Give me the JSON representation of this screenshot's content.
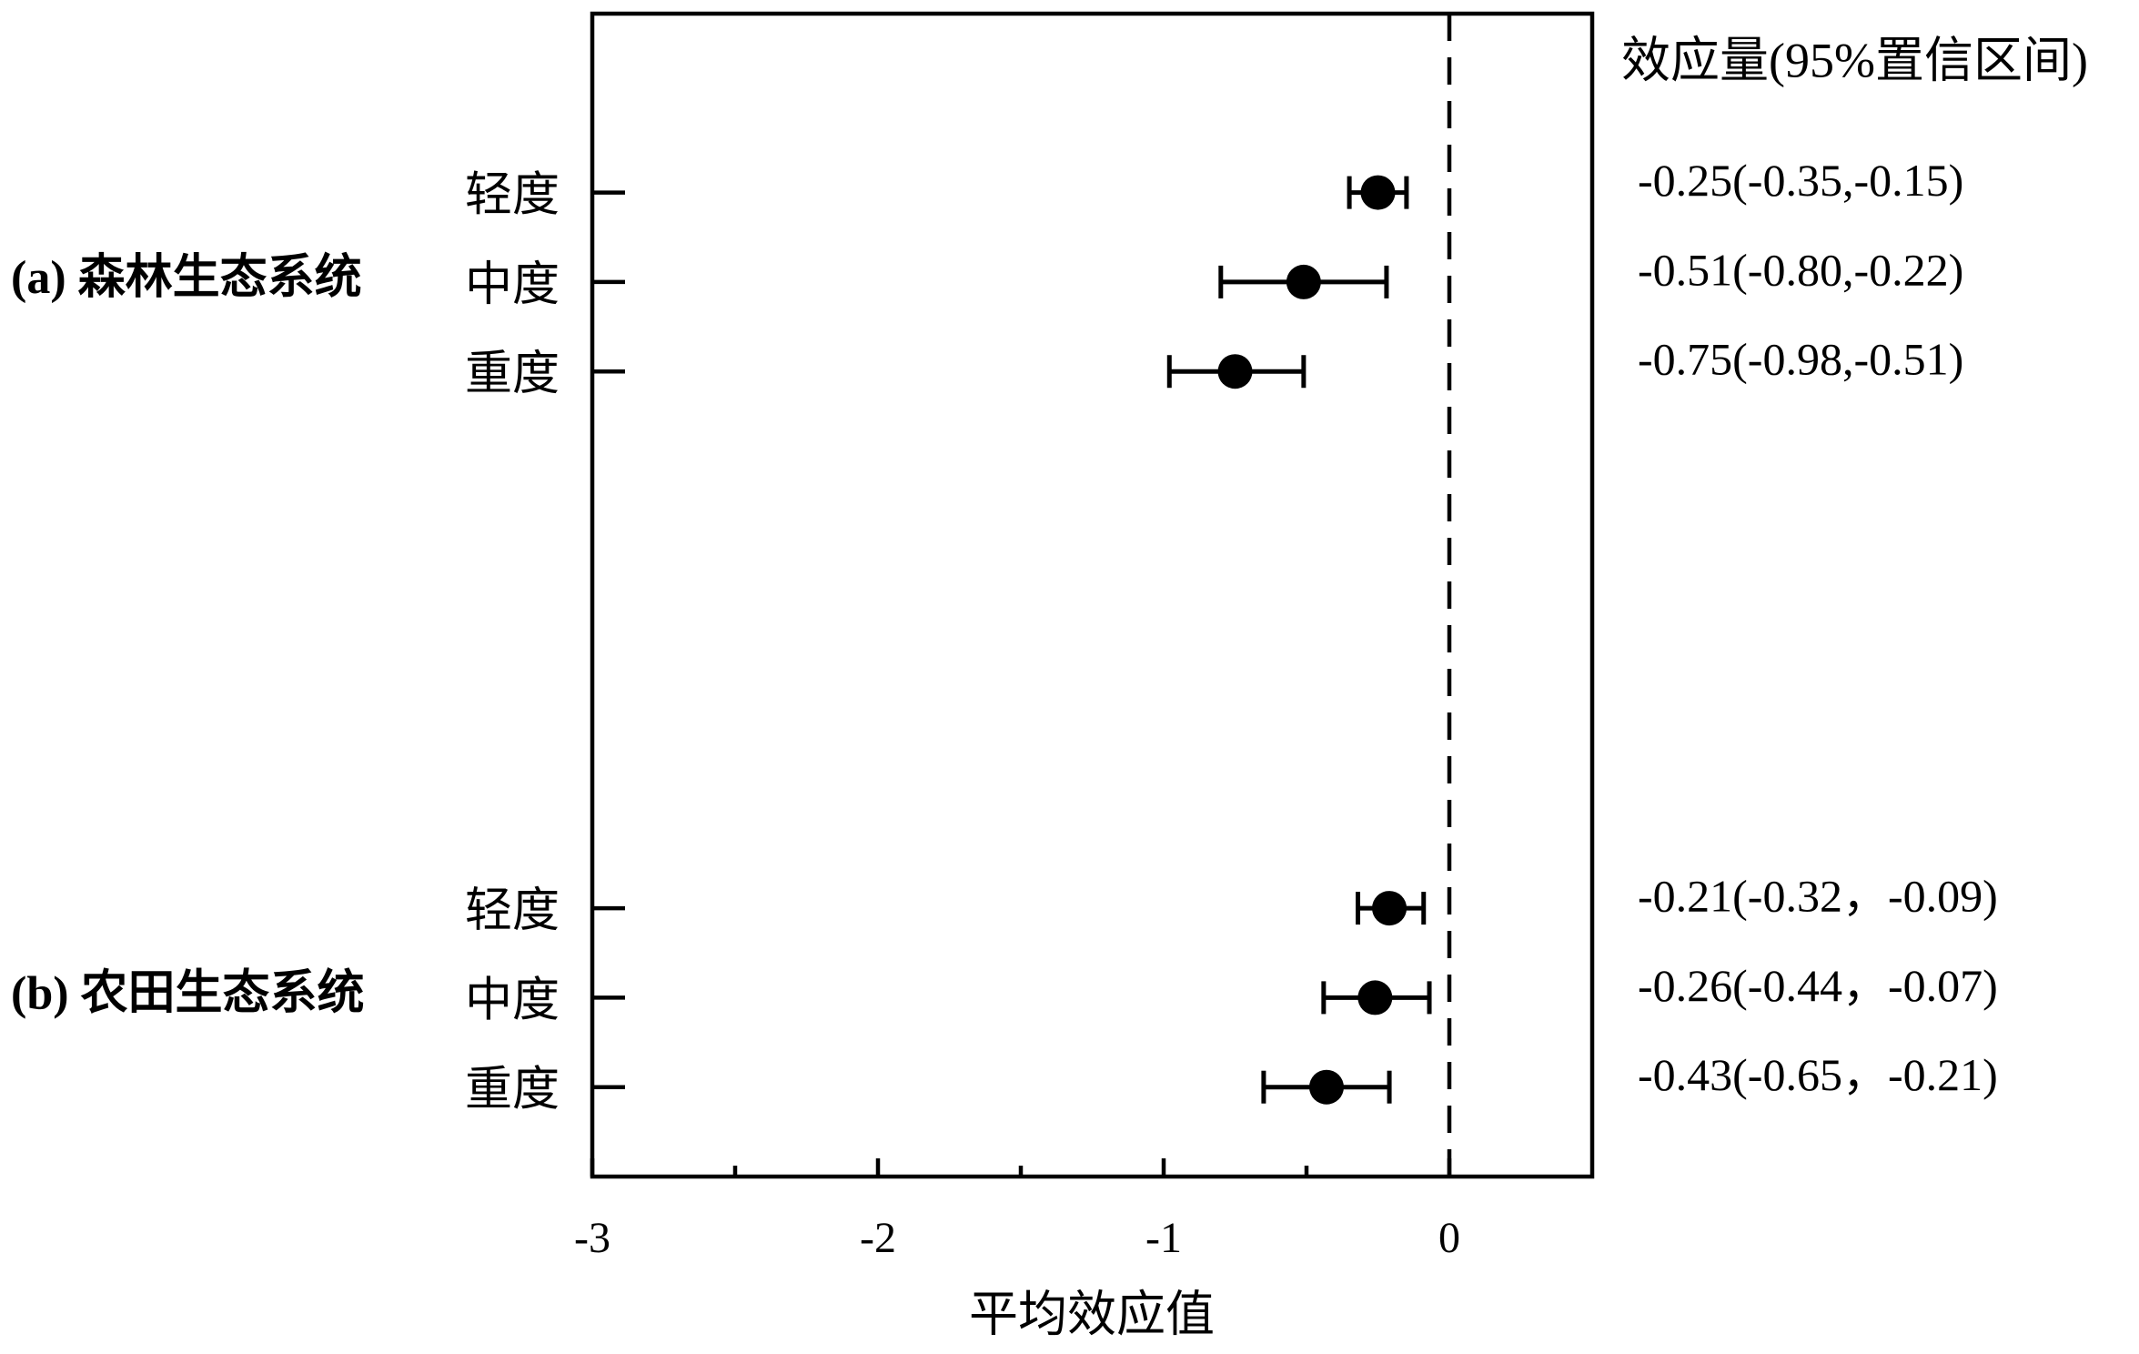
{
  "chart_data": {
    "type": "forest",
    "xlabel": "平均效应值",
    "column_title": "效应量(95%置信区间)",
    "xlim": [
      -3,
      0.5
    ],
    "xticks": [
      -3,
      -2,
      -1,
      0
    ],
    "xminor_ticks": [
      -2.5,
      -1.5,
      -0.5
    ],
    "reference_line": 0,
    "color": "#000000",
    "groups": [
      {
        "label": "(a) 森林生态系统",
        "categories": [
          "轻度",
          "中度",
          "重度"
        ],
        "values": [
          -0.25,
          -0.51,
          -0.75
        ],
        "lower": [
          -0.35,
          -0.8,
          -0.98
        ],
        "upper": [
          -0.15,
          -0.22,
          -0.51
        ],
        "value_labels": [
          "-0.25(-0.35,-0.15)",
          "-0.51(-0.80,-0.22)",
          "-0.75(-0.98,-0.51)"
        ]
      },
      {
        "label": "(b) 农田生态系统",
        "categories": [
          "轻度",
          "中度",
          "重度"
        ],
        "values": [
          -0.21,
          -0.26,
          -0.43
        ],
        "lower": [
          -0.32,
          -0.44,
          -0.65
        ],
        "upper": [
          -0.09,
          -0.07,
          -0.21
        ],
        "value_labels": [
          "-0.21(-0.32，-0.09)",
          "-0.26(-0.44，-0.07)",
          "-0.43(-0.65，-0.21)"
        ]
      }
    ]
  }
}
